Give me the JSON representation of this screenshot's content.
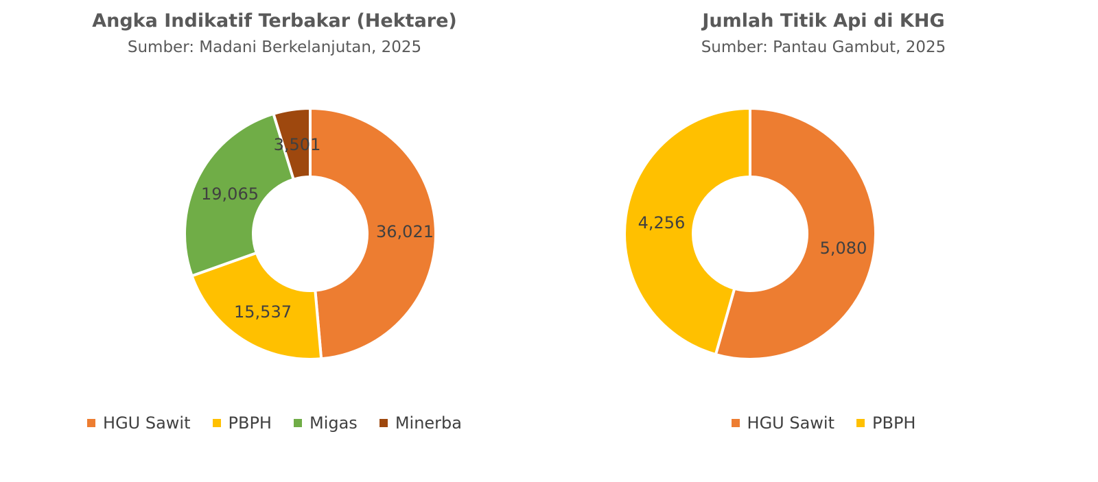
{
  "chart_data": [
    {
      "type": "pie",
      "title": "Angka Indikatif Terbakar (Hektare)",
      "subtitle": "Sumber: Madani Berkelanjutan, 2025",
      "categories": [
        "HGU Sawit",
        "PBPH",
        "Migas",
        "Minerba"
      ],
      "values": [
        36021,
        15537,
        19065,
        3501
      ],
      "value_labels": [
        "36,021",
        "15,537",
        "19,065",
        "3,501"
      ],
      "colors": [
        "#ED7D31",
        "#FFC000",
        "#70AD47",
        "#9E480E"
      ],
      "label_colors": [
        "#404040",
        "#404040",
        "#404040",
        "#ffffff"
      ],
      "legend_position": "bottom"
    },
    {
      "type": "pie",
      "title": "Jumlah Titik Api di KHG",
      "subtitle": "Sumber: Pantau Gambut, 2025",
      "categories": [
        "HGU Sawit",
        "PBPH"
      ],
      "values": [
        5080,
        4256
      ],
      "value_labels": [
        "5,080",
        "4,256"
      ],
      "colors": [
        "#ED7D31",
        "#FFC000"
      ],
      "label_colors": [
        "#404040",
        "#404040"
      ],
      "legend_position": "bottom"
    }
  ]
}
